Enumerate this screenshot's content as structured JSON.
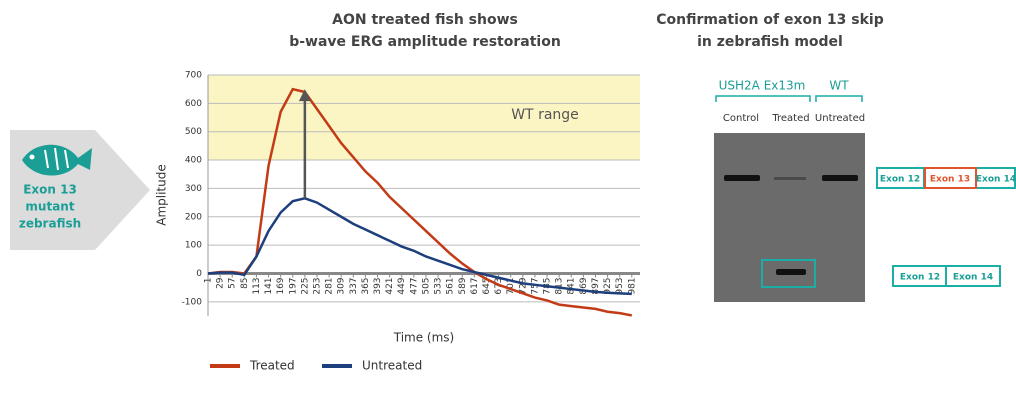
{
  "fish_label": [
    "Exon 13",
    "mutant",
    "zebrafish"
  ],
  "chart_data": {
    "type": "line",
    "title": [
      "AON treated fish shows",
      "b-wave ERG amplitude restoration"
    ],
    "x_label": "Time (ms)",
    "y_label": "Amplitude",
    "x": [
      1,
      29,
      57,
      85,
      113,
      141,
      169,
      197,
      225,
      253,
      281,
      309,
      337,
      365,
      393,
      421,
      449,
      477,
      505,
      533,
      561,
      589,
      617,
      645,
      673,
      701,
      729,
      757,
      785,
      813,
      841,
      869,
      897,
      925,
      953,
      981
    ],
    "series": [
      {
        "name": "Treated",
        "color": "#c23b16",
        "values": [
          0,
          5,
          5,
          0,
          60,
          380,
          570,
          650,
          640,
          580,
          520,
          460,
          410,
          360,
          320,
          270,
          230,
          190,
          150,
          110,
          70,
          35,
          5,
          -20,
          -40,
          -55,
          -70,
          -85,
          -95,
          -110,
          -115,
          -120,
          -125,
          -135,
          -140,
          -148
        ]
      },
      {
        "name": "Untreated",
        "color": "#1d3f7c",
        "values": [
          0,
          3,
          3,
          -5,
          60,
          150,
          215,
          255,
          265,
          250,
          225,
          200,
          175,
          155,
          135,
          115,
          95,
          80,
          60,
          45,
          30,
          15,
          5,
          -5,
          -15,
          -25,
          -35,
          -40,
          -45,
          -50,
          -55,
          -60,
          -65,
          -68,
          -70,
          -72
        ]
      }
    ],
    "xlim": [
      1,
      1000
    ],
    "xticks": [
      1,
      29,
      57,
      85,
      113,
      141,
      169,
      197,
      225,
      253,
      281,
      309,
      337,
      365,
      393,
      421,
      449,
      477,
      505,
      533,
      561,
      589,
      617,
      645,
      673,
      701,
      729,
      757,
      785,
      813,
      841,
      869,
      897,
      925,
      953,
      981
    ],
    "ylim": [
      -150,
      700
    ],
    "yticks": [
      -100,
      0,
      100,
      200,
      300,
      400,
      500,
      600,
      700
    ],
    "grid": true,
    "band": {
      "label": "WT range",
      "range": [
        400,
        700
      ],
      "color": "#fbf5c4"
    },
    "arrow": {
      "x": 225,
      "from": 265,
      "to": 650
    }
  },
  "gel": {
    "title": [
      "Confirmation of exon 13 skip",
      "in zebrafish model"
    ],
    "groups": [
      "USH2A Ex13m",
      "WT"
    ],
    "lanes": [
      "Control",
      "Treated",
      "Untreated"
    ],
    "full_transcript": [
      "Exon 12",
      "Exon 13",
      "Exon 14"
    ],
    "skipped_transcript": [
      "Exon 12",
      "Exon 14"
    ]
  }
}
